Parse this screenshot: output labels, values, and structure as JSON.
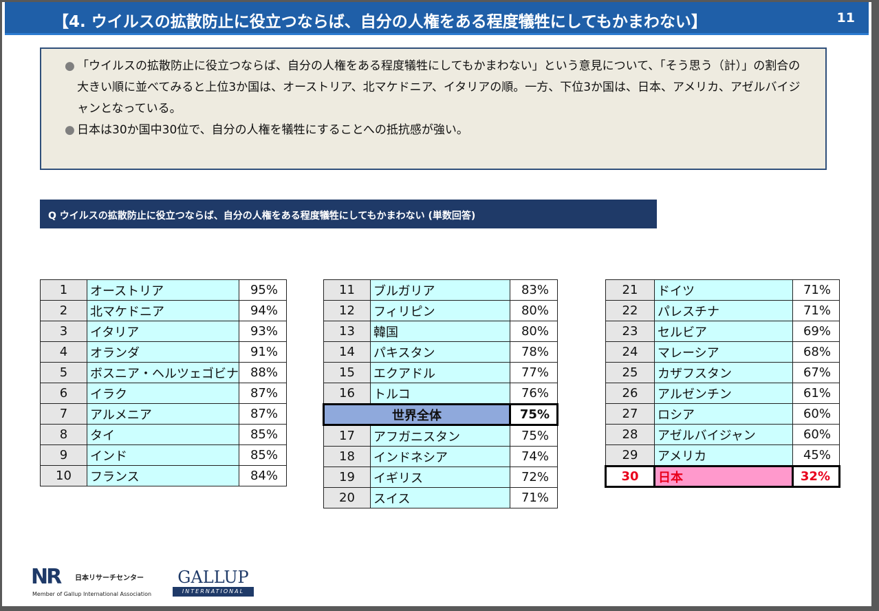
{
  "header": {
    "title": "【4. ウイルスの拡散防止に役立つならば、自分の人権をある程度犠牲にしてもかまわない】",
    "page_number": "11"
  },
  "summary": {
    "bullets": [
      "「ウイルスの拡散防止に役立つならば、自分の人権をある程度犠牲にしてもかまわない」という意見について、「そう思う（計）」の割合の大きい順に並べてみると上位3か国は、オーストリア、北マケドニア、イタリアの順。一方、下位3か国は、日本、アメリカ、アゼルバイジャンとなっている。",
      "日本は30か国中30位で、自分の人権を犠牲にすることへの抵抗感が強い。"
    ]
  },
  "question": {
    "label": "Q ウイルスの拡散防止に役立つならば、自分の人権をある程度犠牲にしてもかまわない (単数回答)"
  },
  "table1": [
    {
      "rank": "1",
      "country": "オーストリア",
      "pct": "95%"
    },
    {
      "rank": "2",
      "country": "北マケドニア",
      "pct": "94%"
    },
    {
      "rank": "3",
      "country": "イタリア",
      "pct": "93%"
    },
    {
      "rank": "4",
      "country": "オランダ",
      "pct": "91%"
    },
    {
      "rank": "5",
      "country": "ボスニア・ヘルツェゴビナ",
      "pct": "88%"
    },
    {
      "rank": "6",
      "country": "イラク",
      "pct": "87%"
    },
    {
      "rank": "7",
      "country": "アルメニア",
      "pct": "87%"
    },
    {
      "rank": "8",
      "country": "タイ",
      "pct": "85%"
    },
    {
      "rank": "9",
      "country": "インド",
      "pct": "85%"
    },
    {
      "rank": "10",
      "country": "フランス",
      "pct": "84%"
    }
  ],
  "table2": [
    {
      "rank": "11",
      "country": "ブルガリア",
      "pct": "83%"
    },
    {
      "rank": "12",
      "country": "フィリピン",
      "pct": "80%"
    },
    {
      "rank": "13",
      "country": "韓国",
      "pct": "80%"
    },
    {
      "rank": "14",
      "country": "パキスタン",
      "pct": "78%"
    },
    {
      "rank": "15",
      "country": "エクアドル",
      "pct": "77%"
    },
    {
      "rank": "16",
      "country": "トルコ",
      "pct": "76%"
    },
    {
      "rank": "17",
      "country": "アフガニスタン",
      "pct": "75%"
    },
    {
      "rank": "18",
      "country": "インドネシア",
      "pct": "74%"
    },
    {
      "rank": "19",
      "country": "イギリス",
      "pct": "72%"
    },
    {
      "rank": "20",
      "country": "スイス",
      "pct": "71%"
    }
  ],
  "world": {
    "label": "世界全体",
    "pct": "75%"
  },
  "table3": [
    {
      "rank": "21",
      "country": "ドイツ",
      "pct": "71%"
    },
    {
      "rank": "22",
      "country": "パレスチナ",
      "pct": "71%"
    },
    {
      "rank": "23",
      "country": "セルビア",
      "pct": "69%"
    },
    {
      "rank": "24",
      "country": "マレーシア",
      "pct": "68%"
    },
    {
      "rank": "25",
      "country": "カザフスタン",
      "pct": "67%"
    },
    {
      "rank": "26",
      "country": "アルゼンチン",
      "pct": "61%"
    },
    {
      "rank": "27",
      "country": "ロシア",
      "pct": "60%"
    },
    {
      "rank": "28",
      "country": "アゼルバイジャン",
      "pct": "60%"
    },
    {
      "rank": "29",
      "country": "アメリカ",
      "pct": "45%"
    },
    {
      "rank": "30",
      "country": "日本",
      "pct": "32%"
    }
  ],
  "footer": {
    "nrc_mark": "NR",
    "nrc_name": "日本リサーチセンター",
    "nrc_member": "Member of Gallup International Association",
    "gallup_word": "GALLUP",
    "gallup_sub": "INTERNATIONAL"
  },
  "colors": {
    "title_bar": "#1f5fa8",
    "question_bar": "#1f3a68",
    "country_cell": "#ccffff",
    "world_cell": "#8fa9dc",
    "japan_cell": "#ff99cc",
    "japan_text": "#e8001c"
  }
}
